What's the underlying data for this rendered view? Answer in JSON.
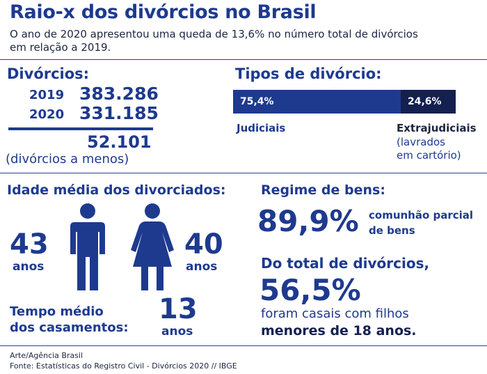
{
  "header": {
    "title": "Raio-x dos divórcios no Brasil",
    "subtitle_line1": "O ano de 2020 apresentou uma queda de 13,6% no número total de divórcios",
    "subtitle_line2": "em relação a 2019."
  },
  "divorces": {
    "heading": "Divórcios:",
    "rows": [
      {
        "year": "2019",
        "value": "383.286"
      },
      {
        "year": "2020",
        "value": "331.185"
      }
    ],
    "difference": "52.101",
    "difference_label": "(divórcios a menos)"
  },
  "types": {
    "heading": "Tipos de divórcio:",
    "judicial_pct": "75,4%",
    "extra_pct": "24,6%",
    "judicial_share": 75.4,
    "judicial_label": "Judiciais",
    "extra_label": "Extrajudiciais",
    "extra_note_line1": "(lavrados",
    "extra_note_line2": "em cartório)"
  },
  "age": {
    "heading": "Idade média dos divorciados:",
    "male_age": "43",
    "male_unit": "anos",
    "female_age": "40",
    "female_unit": "anos"
  },
  "marriage": {
    "line1": "Tempo médio",
    "line2": "dos casamentos:",
    "years": "13",
    "unit": "anos"
  },
  "property": {
    "heading": "Regime de bens:",
    "pct": "89,9%",
    "desc_line1": "comunhão parcial",
    "desc_line2": "de bens"
  },
  "children": {
    "line1": "Do total de divórcios,",
    "pct": "56,5%",
    "line2": "foram casais com filhos",
    "line3": "menores de 18 anos."
  },
  "footer": {
    "credit": "Arte/Agência Brasil",
    "source": "Fonte: Estatísticas do Registro Civil - Divórcios 2020 // IBGE"
  },
  "colors": {
    "primary": "#1e3a8f",
    "bar_judicial": "#1e3a8f",
    "bar_extra": "#142050",
    "text_dark": "#1c2541"
  }
}
